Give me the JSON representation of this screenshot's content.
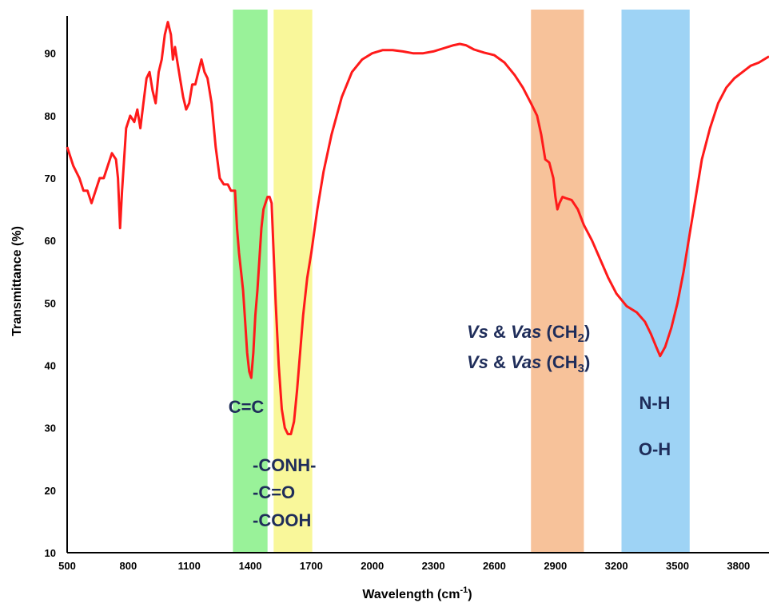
{
  "chart_data": {
    "type": "line",
    "xlabel": "Wavelength (cm",
    "xlabel_sup": "-1",
    "xlabel_close": ")",
    "ylabel": "Transmittance (%)",
    "xlim": [
      500,
      3950
    ],
    "ylim": [
      10,
      97
    ],
    "xticks": [
      500,
      800,
      1100,
      1400,
      1700,
      2000,
      2300,
      2600,
      2900,
      3200,
      3500,
      3800
    ],
    "yticks": [
      10,
      20,
      30,
      40,
      50,
      60,
      70,
      80,
      90
    ],
    "grid": false,
    "line_color": "#ff1a1a",
    "bands": [
      {
        "from": 1315,
        "to": 1485,
        "color": "#99f299"
      },
      {
        "from": 1515,
        "to": 1705,
        "color": "#f9f79a"
      },
      {
        "from": 2780,
        "to": 3040,
        "color": "#f7c29a"
      },
      {
        "from": 3225,
        "to": 3560,
        "color": "#9ed3f5"
      }
    ],
    "annotations": {
      "cc": "C=C",
      "conh": "-CONH-",
      "co": "-C=O",
      "cooh": "-COOH",
      "ch2_vs": "Vs",
      "ch2_amp": " & ",
      "ch2_vas": "Vas",
      "ch2_group": " (CH",
      "ch2_sub": "2",
      "ch2_close": ")",
      "ch3_vs": "Vs",
      "ch3_amp": " & ",
      "ch3_vas": "Vas",
      "ch3_group": " (CH",
      "ch3_sub": "3",
      "ch3_close": ")",
      "nh": "N-H",
      "oh": "O-H"
    },
    "series": [
      {
        "points": [
          [
            500,
            75
          ],
          [
            530,
            72
          ],
          [
            560,
            70
          ],
          [
            580,
            68
          ],
          [
            600,
            68
          ],
          [
            620,
            66
          ],
          [
            640,
            68
          ],
          [
            660,
            70
          ],
          [
            680,
            70
          ],
          [
            700,
            72
          ],
          [
            720,
            74
          ],
          [
            740,
            73
          ],
          [
            750,
            70
          ],
          [
            760,
            62
          ],
          [
            770,
            68
          ],
          [
            790,
            78
          ],
          [
            810,
            80
          ],
          [
            830,
            79
          ],
          [
            845,
            81
          ],
          [
            860,
            78
          ],
          [
            875,
            82
          ],
          [
            890,
            86
          ],
          [
            905,
            87
          ],
          [
            920,
            84
          ],
          [
            935,
            82
          ],
          [
            950,
            87
          ],
          [
            965,
            89
          ],
          [
            980,
            93
          ],
          [
            995,
            95
          ],
          [
            1010,
            93
          ],
          [
            1020,
            89
          ],
          [
            1030,
            91
          ],
          [
            1040,
            89
          ],
          [
            1055,
            86
          ],
          [
            1070,
            83
          ],
          [
            1085,
            81
          ],
          [
            1100,
            82
          ],
          [
            1115,
            85
          ],
          [
            1130,
            85
          ],
          [
            1145,
            87
          ],
          [
            1160,
            89
          ],
          [
            1175,
            87
          ],
          [
            1190,
            86
          ],
          [
            1210,
            82
          ],
          [
            1230,
            75
          ],
          [
            1250,
            70
          ],
          [
            1270,
            69
          ],
          [
            1290,
            69
          ],
          [
            1305,
            68
          ],
          [
            1315,
            68
          ],
          [
            1325,
            68
          ],
          [
            1335,
            62
          ],
          [
            1345,
            58
          ],
          [
            1355,
            55
          ],
          [
            1365,
            52
          ],
          [
            1375,
            47
          ],
          [
            1385,
            42
          ],
          [
            1395,
            39
          ],
          [
            1405,
            38
          ],
          [
            1415,
            42
          ],
          [
            1425,
            48
          ],
          [
            1435,
            52
          ],
          [
            1445,
            57
          ],
          [
            1455,
            62
          ],
          [
            1465,
            65
          ],
          [
            1475,
            66
          ],
          [
            1485,
            67
          ],
          [
            1495,
            67
          ],
          [
            1505,
            66
          ],
          [
            1515,
            58
          ],
          [
            1525,
            50
          ],
          [
            1540,
            40
          ],
          [
            1555,
            33
          ],
          [
            1570,
            30
          ],
          [
            1585,
            29
          ],
          [
            1600,
            29
          ],
          [
            1615,
            31
          ],
          [
            1630,
            36
          ],
          [
            1645,
            42
          ],
          [
            1660,
            48
          ],
          [
            1680,
            54
          ],
          [
            1700,
            58
          ],
          [
            1730,
            65
          ],
          [
            1760,
            71
          ],
          [
            1800,
            77
          ],
          [
            1850,
            83
          ],
          [
            1900,
            87
          ],
          [
            1950,
            89
          ],
          [
            2000,
            90
          ],
          [
            2050,
            90.5
          ],
          [
            2100,
            90.5
          ],
          [
            2150,
            90.3
          ],
          [
            2200,
            90
          ],
          [
            2250,
            90
          ],
          [
            2300,
            90.3
          ],
          [
            2350,
            90.8
          ],
          [
            2400,
            91.3
          ],
          [
            2430,
            91.5
          ],
          [
            2460,
            91.3
          ],
          [
            2500,
            90.6
          ],
          [
            2550,
            90.1
          ],
          [
            2600,
            89.7
          ],
          [
            2650,
            88.5
          ],
          [
            2700,
            86.5
          ],
          [
            2740,
            84.5
          ],
          [
            2780,
            82
          ],
          [
            2810,
            80
          ],
          [
            2830,
            77
          ],
          [
            2850,
            73
          ],
          [
            2870,
            72.5
          ],
          [
            2890,
            70
          ],
          [
            2900,
            67
          ],
          [
            2910,
            65
          ],
          [
            2920,
            66
          ],
          [
            2935,
            67
          ],
          [
            2950,
            66.8
          ],
          [
            2980,
            66.5
          ],
          [
            3010,
            65
          ],
          [
            3040,
            62.5
          ],
          [
            3080,
            60
          ],
          [
            3120,
            57
          ],
          [
            3160,
            54
          ],
          [
            3200,
            51.5
          ],
          [
            3250,
            49.5
          ],
          [
            3300,
            48.5
          ],
          [
            3340,
            47
          ],
          [
            3370,
            45
          ],
          [
            3395,
            43
          ],
          [
            3415,
            41.5
          ],
          [
            3440,
            43
          ],
          [
            3470,
            46
          ],
          [
            3500,
            50
          ],
          [
            3530,
            55
          ],
          [
            3560,
            61
          ],
          [
            3590,
            67
          ],
          [
            3620,
            73
          ],
          [
            3660,
            78
          ],
          [
            3700,
            82
          ],
          [
            3740,
            84.5
          ],
          [
            3780,
            86
          ],
          [
            3820,
            87
          ],
          [
            3860,
            88
          ],
          [
            3900,
            88.5
          ],
          [
            3950,
            89.5
          ]
        ]
      }
    ]
  }
}
